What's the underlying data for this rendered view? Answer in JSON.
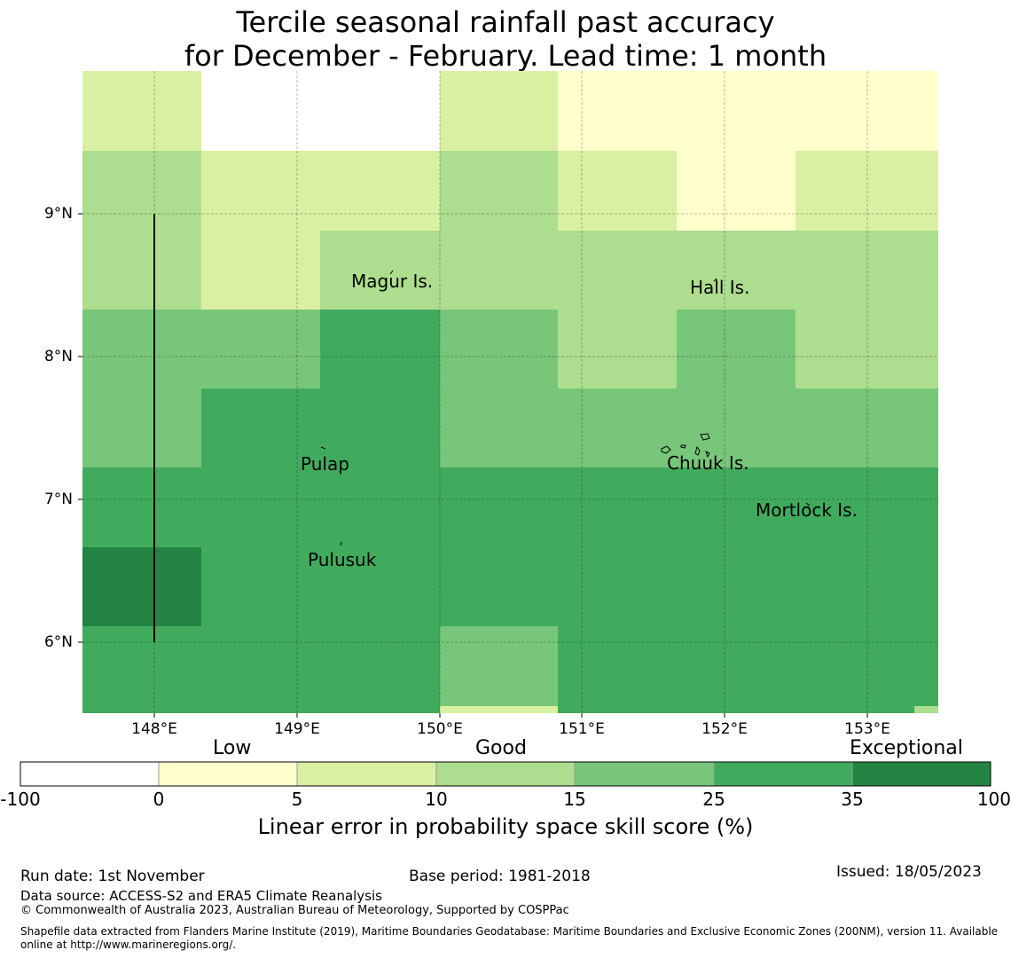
{
  "title": {
    "line1": "Tercile seasonal rainfall past accuracy",
    "line2": "for December - February. Lead time: 1 month"
  },
  "map": {
    "lat_labels": [
      "9°N",
      "8°N",
      "7°N",
      "6°N"
    ],
    "lon_labels": [
      "148°E",
      "149°E",
      "150°E",
      "151°E",
      "152°E",
      "153°E"
    ],
    "place_labels": [
      "Magur Is.",
      "Hall Is.",
      "Pulap",
      "Chuuk Is.",
      "Mortlock Is.",
      "Pulusuk"
    ],
    "grid": [
      [
        2,
        0,
        0,
        2,
        1,
        1,
        1
      ],
      [
        3,
        2,
        2,
        3,
        2,
        1,
        2
      ],
      [
        3,
        2,
        3,
        3,
        3,
        3,
        3
      ],
      [
        4,
        4,
        5,
        4,
        3,
        4,
        3
      ],
      [
        4,
        5,
        5,
        4,
        4,
        4,
        4
      ],
      [
        5,
        5,
        5,
        5,
        5,
        5,
        5
      ],
      [
        6,
        5,
        5,
        5,
        5,
        5,
        5
      ],
      [
        5,
        5,
        5,
        4,
        5,
        5,
        5
      ]
    ]
  },
  "legend": {
    "category_labels": [
      "Low",
      "Good",
      "Exceptional"
    ],
    "tick_labels": [
      "-100",
      "0",
      "5",
      "10",
      "15",
      "25",
      "35",
      "100"
    ],
    "colors": [
      "#ffffff",
      "#ffffcc",
      "#d9f0a3",
      "#addd8e",
      "#78c679",
      "#41ab5d",
      "#238443"
    ],
    "axis_label": "Linear error in probability space skill score (%)"
  },
  "footer": {
    "run_date": "Run date: 1st November",
    "base_period": "Base period: 1981-2018",
    "issued": "Issued: 18/05/2023",
    "data_source": "Data source: ACCESS-S2 and ERA5 Climate Reanalysis",
    "copyright": "© Commonwealth of Australia 2023, Australian Bureau of Meteorology, Supported by COSPPac",
    "shapefile_line1": "Shapefile data extracted from Flanders Marine Institute (2019), Maritime Boundaries Geodatabase: Maritime Boundaries and Exclusive Economic Zones (200NM), version 11. Available",
    "shapefile_line2": "online at http://www.marineregions.org/."
  }
}
